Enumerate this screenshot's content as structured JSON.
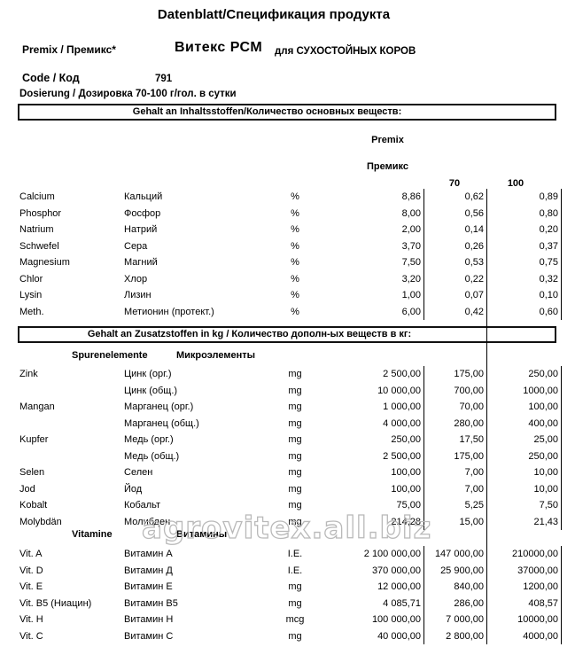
{
  "title": "Datenblatt/Спецификация продукта",
  "header": {
    "premix_label": "Premix / Премикс*",
    "product_name": "Витекс РСМ",
    "product_target": "для СУХОСТОЙНЫХ КОРОВ",
    "code_label": "Code / Код",
    "code_value": "791",
    "dosage": "Dosierung / Дозировка 70-100 г/гол. в сутки"
  },
  "columns": {
    "premix_de": "Premix",
    "premix_ru": "Премикс",
    "dose70": "70",
    "dose100": "100"
  },
  "section1": {
    "box_title": "Gehalt an Inhaltsstoffen/Количество основных веществ:",
    "rows": [
      {
        "de": "Calcium",
        "ru": "Кальций",
        "unit": "%",
        "premix": "8,86",
        "v70": "0,62",
        "v100": "0,89"
      },
      {
        "de": "Phosphor",
        "ru": "Фосфор",
        "unit": "%",
        "premix": "8,00",
        "v70": "0,56",
        "v100": "0,80"
      },
      {
        "de": "Natrium",
        "ru": "Натрий",
        "unit": "%",
        "premix": "2,00",
        "v70": "0,14",
        "v100": "0,20"
      },
      {
        "de": "Schwefel",
        "ru": "Сера",
        "unit": "%",
        "premix": "3,70",
        "v70": "0,26",
        "v100": "0,37"
      },
      {
        "de": "Magnesium",
        "ru": "Магний",
        "unit": "%",
        "premix": "7,50",
        "v70": "0,53",
        "v100": "0,75"
      },
      {
        "de": "Chlor",
        "ru": "Хлор",
        "unit": "%",
        "premix": "3,20",
        "v70": "0,22",
        "v100": "0,32"
      },
      {
        "de": "Lysin",
        "ru": "Лизин",
        "unit": "%",
        "premix": "1,00",
        "v70": "0,07",
        "v100": "0,10"
      },
      {
        "de": "Meth.",
        "ru": "Метионин (протект.)",
        "unit": "%",
        "premix": "6,00",
        "v70": "0,42",
        "v100": "0,60"
      }
    ]
  },
  "section2": {
    "box_title": "Gehalt an Zusatzstoffen in kg / Количество дополн-ых веществ в кг:",
    "trace_header": {
      "de": "Spurenelemente",
      "ru": "Микроэлементы"
    },
    "trace_rows": [
      {
        "de": "Zink",
        "ru": "Цинк (орг.)",
        "unit": "mg",
        "premix": "2 500,00",
        "v70": "175,00",
        "v100": "250,00"
      },
      {
        "de": "",
        "ru": "Цинк (общ.)",
        "unit": "mg",
        "premix": "10 000,00",
        "v70": "700,00",
        "v100": "1000,00"
      },
      {
        "de": "Mangan",
        "ru": "Марганец (орг.)",
        "unit": "mg",
        "premix": "1 000,00",
        "v70": "70,00",
        "v100": "100,00"
      },
      {
        "de": "",
        "ru": "Марганец (общ.)",
        "unit": "mg",
        "premix": "4 000,00",
        "v70": "280,00",
        "v100": "400,00"
      },
      {
        "de": "Kupfer",
        "ru": "Медь (орг.)",
        "unit": "mg",
        "premix": "250,00",
        "v70": "17,50",
        "v100": "25,00"
      },
      {
        "de": "",
        "ru": "Медь (общ.)",
        "unit": "mg",
        "premix": "2 500,00",
        "v70": "175,00",
        "v100": "250,00"
      },
      {
        "de": "Selen",
        "ru": "Селен",
        "unit": "mg",
        "premix": "100,00",
        "v70": "7,00",
        "v100": "10,00"
      },
      {
        "de": "Jod",
        "ru": "Йод",
        "unit": "mg",
        "premix": "100,00",
        "v70": "7,00",
        "v100": "10,00"
      },
      {
        "de": "Kobalt",
        "ru": "Кобальт",
        "unit": "mg",
        "premix": "75,00",
        "v70": "5,25",
        "v100": "7,50"
      },
      {
        "de": "Molybdän",
        "ru": "Молибден",
        "unit": "mg",
        "premix": "214,28",
        "v70": "15,00",
        "v100": "21,43"
      }
    ],
    "vitamin_header": {
      "de": "Vitamine",
      "ru": "Витамины"
    },
    "vitamin_rows": [
      {
        "de": "Vit. A",
        "ru": "Витамин А",
        "unit": "I.E.",
        "premix": "2 100 000,00",
        "v70": "147 000,00",
        "v100": "210000,00"
      },
      {
        "de": "Vit. D",
        "ru": "Витамин Д",
        "unit": "I.E.",
        "premix": "370 000,00",
        "v70": "25 900,00",
        "v100": "37000,00"
      },
      {
        "de": "Vit. E",
        "ru": "Витамин Е",
        "unit": "mg",
        "premix": "12 000,00",
        "v70": "840,00",
        "v100": "1200,00"
      },
      {
        "de": "Vit. B5 (Ниацин)",
        "ru": "Витамин В5",
        "unit": "mg",
        "premix": "4 085,71",
        "v70": "286,00",
        "v100": "408,57"
      },
      {
        "de": "Vit. H",
        "ru": "Витамин Н",
        "unit": "mcg",
        "premix": "100 000,00",
        "v70": "7 000,00",
        "v100": "10000,00"
      },
      {
        "de": "Vit. C",
        "ru": "Витамин С",
        "unit": "mg",
        "premix": "40 000,00",
        "v70": "2 800,00",
        "v100": "4000,00"
      }
    ]
  },
  "watermark": "agrovitex.all.biz"
}
